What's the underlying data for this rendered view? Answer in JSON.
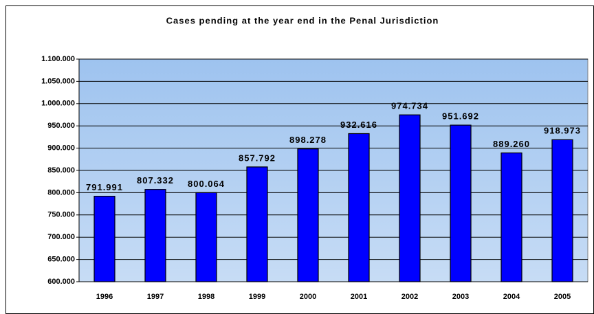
{
  "chart_data": {
    "type": "bar",
    "title": "Cases pending at the year end in the Penal Jurisdiction",
    "categories": [
      "1996",
      "1997",
      "1998",
      "1999",
      "2000",
      "2001",
      "2002",
      "2003",
      "2004",
      "2005"
    ],
    "values": [
      791991,
      807332,
      800064,
      857792,
      898278,
      932616,
      974734,
      951692,
      889260,
      918973
    ],
    "value_labels": [
      "791.991",
      "807.332",
      "800.064",
      "857.792",
      "898.278",
      "932.616",
      "974.734",
      "951.692",
      "889.260",
      "918.973"
    ],
    "color": "#0000ff",
    "ylim": [
      600000,
      1100000
    ],
    "yticks": [
      {
        "value": 600000,
        "label": "600.000"
      },
      {
        "value": 650000,
        "label": "650.000"
      },
      {
        "value": 700000,
        "label": "700.000"
      },
      {
        "value": 750000,
        "label": "750.000"
      },
      {
        "value": 800000,
        "label": "800.000"
      },
      {
        "value": 850000,
        "label": "850.000"
      },
      {
        "value": 900000,
        "label": "900.000"
      },
      {
        "value": 950000,
        "label": "950.000"
      },
      {
        "value": 1000000,
        "label": "1.000.000"
      },
      {
        "value": 1050000,
        "label": "1.050.000"
      },
      {
        "value": 1100000,
        "label": "1.100.000"
      }
    ],
    "grid": true
  }
}
